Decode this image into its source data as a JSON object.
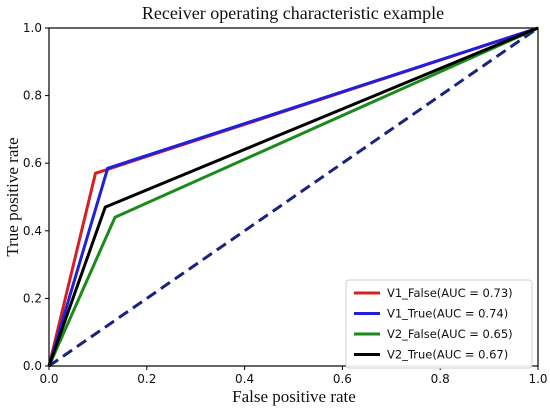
{
  "chart_data": {
    "type": "line",
    "title": "Receiver operating characteristic example",
    "xlabel": "False positive rate",
    "ylabel": "True positive rate",
    "xlim": [
      0.0,
      1.0
    ],
    "ylim": [
      0.0,
      1.0
    ],
    "xticks": [
      "0.0",
      "0.2",
      "0.4",
      "0.6",
      "0.8",
      "1.0"
    ],
    "yticks": [
      "0.0",
      "0.2",
      "0.4",
      "0.6",
      "0.8",
      "1.0"
    ],
    "grid": false,
    "legend_position": "lower-right",
    "series": [
      {
        "name": "V1_False(AUC = 0.73)",
        "color": "#d62020",
        "x": [
          0.0,
          0.095,
          1.0
        ],
        "y": [
          0.0,
          0.57,
          1.0
        ]
      },
      {
        "name": "V1_True(AUC = 0.74)",
        "color": "#1f1fdc",
        "x": [
          0.0,
          0.12,
          1.0
        ],
        "y": [
          0.0,
          0.585,
          1.0
        ]
      },
      {
        "name": "V2_False(AUC = 0.65)",
        "color": "#1a8a1a",
        "x": [
          0.0,
          0.135,
          1.0
        ],
        "y": [
          0.0,
          0.44,
          1.0
        ]
      },
      {
        "name": "V2_True(AUC = 0.67)",
        "color": "#000000",
        "x": [
          0.0,
          0.115,
          1.0
        ],
        "y": [
          0.0,
          0.47,
          1.0
        ]
      }
    ],
    "reference_line": {
      "style": "dashed",
      "color": "#1a237e",
      "x": [
        0.0,
        1.0
      ],
      "y": [
        0.0,
        1.0
      ]
    }
  }
}
